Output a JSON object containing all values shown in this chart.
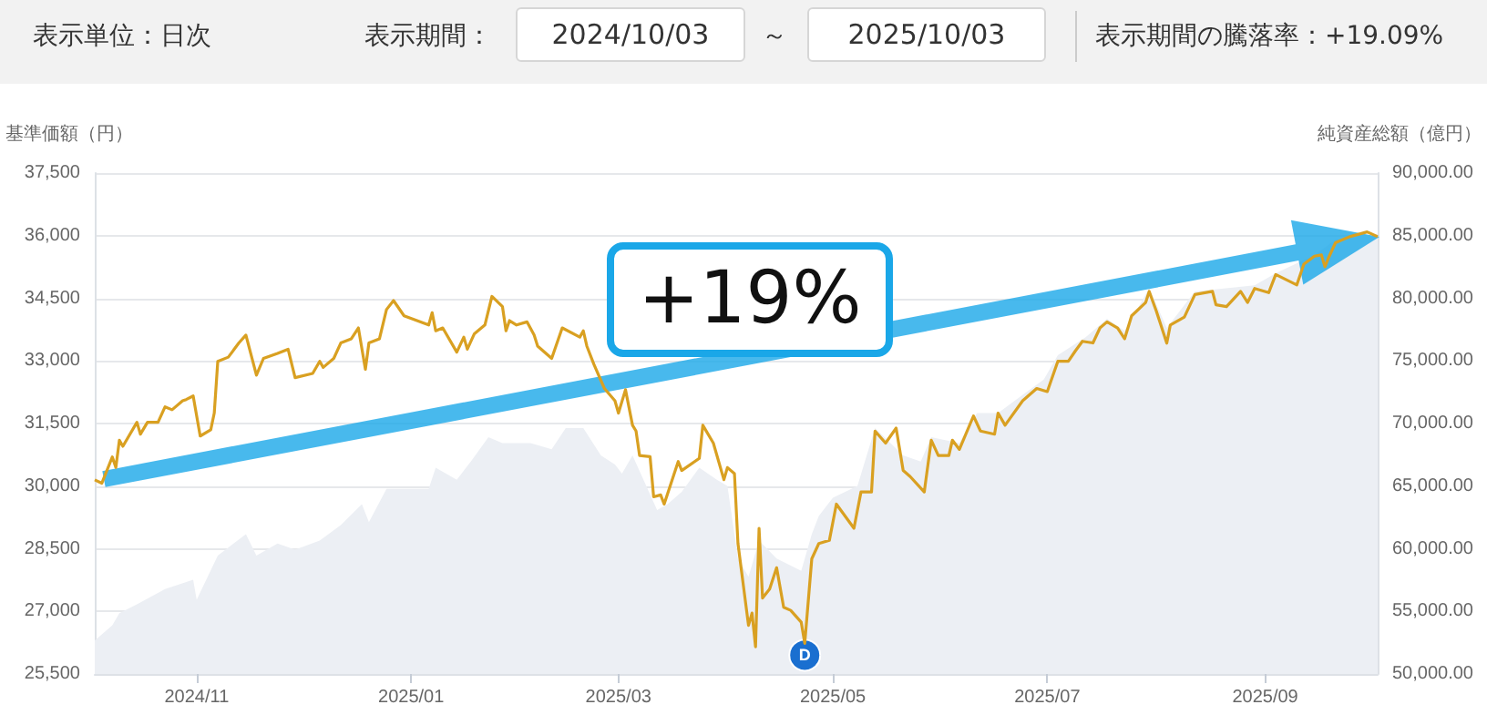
{
  "chart_data": {
    "type": "line",
    "ylabel": "基準価額（円）",
    "y2label": "純資産総額（億円）",
    "annotations": [
      "表示単位：日次",
      "表示期間：",
      "2024/10/03",
      "～",
      "2025/10/03",
      "表示期間の騰落率：+19.09%",
      "+19%",
      {
        "text": "D",
        "x": "2025-04-23",
        "y": 25950
      }
    ],
    "xlim": [
      "2024-10-03",
      "2025-10-03"
    ],
    "xticks": [
      {
        "value": "2024-11-01",
        "label": "2024/11"
      },
      {
        "value": "2025-01-01",
        "label": "2025/01"
      },
      {
        "value": "2025-03-01",
        "label": "2025/03"
      },
      {
        "value": "2025-05-01",
        "label": "2025/05"
      },
      {
        "value": "2025-07-01",
        "label": "2025/07"
      },
      {
        "value": "2025-09-01",
        "label": "2025/09"
      }
    ],
    "ylim": [
      25500,
      37500
    ],
    "yticks": [
      {
        "value": 25500,
        "label": "25,500"
      },
      {
        "value": 27000,
        "label": "27,000"
      },
      {
        "value": 28500,
        "label": "28,500"
      },
      {
        "value": 30000,
        "label": "30,000"
      },
      {
        "value": 31500,
        "label": "31,500"
      },
      {
        "value": 33000,
        "label": "33,000"
      },
      {
        "value": 34500,
        "label": "34,500"
      },
      {
        "value": 36000,
        "label": "36,000"
      },
      {
        "value": 37500,
        "label": "37,500"
      }
    ],
    "y2lim": [
      50000,
      90000
    ],
    "y2ticks": [
      {
        "value": 50000,
        "label": "50,000.00"
      },
      {
        "value": 55000,
        "label": "55,000.00"
      },
      {
        "value": 60000,
        "label": "60,000.00"
      },
      {
        "value": 65000,
        "label": "65,000.00"
      },
      {
        "value": 70000,
        "label": "70,000.00"
      },
      {
        "value": 75000,
        "label": "75,000.00"
      },
      {
        "value": 80000,
        "label": "80,000.00"
      },
      {
        "value": 85000,
        "label": "85,000.00"
      },
      {
        "value": 90000,
        "label": "90,000.00"
      }
    ],
    "grid": "y",
    "marker": "none",
    "series": [
      {
        "type": "area",
        "axis": "y2",
        "color": "#eceff4",
        "x": [
          "2024-10-03",
          "2024-10-08",
          "2024-10-10",
          "2024-10-15",
          "2024-10-23",
          "2024-10-31",
          "2024-11-01",
          "2024-11-07",
          "2024-11-15",
          "2024-11-18",
          "2024-11-24",
          "2024-11-29",
          "2024-12-06",
          "2024-12-12",
          "2024-12-18",
          "2024-12-20",
          "2024-12-25",
          "2025-01-06",
          "2025-01-08",
          "2025-01-14",
          "2025-01-18",
          "2025-01-23",
          "2025-01-27",
          "2025-01-31",
          "2025-02-04",
          "2025-02-10",
          "2025-02-14",
          "2025-02-19",
          "2025-02-24",
          "2025-02-28",
          "2025-03-02",
          "2025-03-05",
          "2025-03-12",
          "2025-03-15",
          "2025-03-19",
          "2025-03-24",
          "2025-03-29",
          "2025-04-01",
          "2025-04-04",
          "2025-04-07",
          "2025-04-10",
          "2025-04-15",
          "2025-04-22",
          "2025-04-25",
          "2025-04-27",
          "2025-05-01",
          "2025-05-08",
          "2025-05-13",
          "2025-05-21",
          "2025-05-26",
          "2025-05-29",
          "2025-06-06",
          "2025-06-11",
          "2025-06-17",
          "2025-06-24",
          "2025-06-30",
          "2025-07-04",
          "2025-07-12",
          "2025-07-18",
          "2025-07-23",
          "2025-07-30",
          "2025-08-04",
          "2025-08-12",
          "2025-08-29",
          "2025-09-04",
          "2025-09-15",
          "2025-09-21",
          "2025-10-03"
        ],
        "values": [
          52665,
          53890,
          54850,
          55570,
          56790,
          57520,
          55920,
          59455,
          61160,
          59455,
          60425,
          59935,
          60660,
          61885,
          63570,
          62120,
          64790,
          64790,
          66480,
          65515,
          66970,
          68910,
          68430,
          68430,
          68430,
          67940,
          69640,
          69640,
          67455,
          66725,
          66000,
          67455,
          63090,
          63570,
          64545,
          66480,
          65515,
          65025,
          59210,
          57760,
          60660,
          59210,
          58245,
          61160,
          62610,
          64065,
          65025,
          69640,
          67455,
          66970,
          68910,
          68430,
          70845,
          70845,
          72300,
          73510,
          75455,
          76910,
          78365,
          77395,
          80790,
          77640,
          80545,
          81030,
          82000,
          83455,
          84665,
          85150
        ]
      },
      {
        "color": "#d9a021",
        "x": [
          "2024-10-03",
          "2024-10-05",
          "2024-10-08",
          "2024-10-09",
          "2024-10-10",
          "2024-10-11",
          "2024-10-15",
          "2024-10-16",
          "2024-10-18",
          "2024-10-21",
          "2024-10-23",
          "2024-10-25",
          "2024-10-28",
          "2024-10-29",
          "2024-10-31",
          "2024-11-02",
          "2024-11-05",
          "2024-11-06",
          "2024-11-07",
          "2024-11-10",
          "2024-11-13",
          "2024-11-15",
          "2024-11-18",
          "2024-11-20",
          "2024-11-24",
          "2024-11-27",
          "2024-11-29",
          "2024-12-04",
          "2024-12-06",
          "2024-12-07",
          "2024-12-10",
          "2024-12-12",
          "2024-12-15",
          "2024-12-17",
          "2024-12-19",
          "2024-12-20",
          "2024-12-23",
          "2024-12-25",
          "2024-12-27",
          "2024-12-30",
          "2025-01-06",
          "2025-01-07",
          "2025-01-08",
          "2025-01-10",
          "2025-01-14",
          "2025-01-16",
          "2025-01-17",
          "2025-01-19",
          "2025-01-22",
          "2025-01-24",
          "2025-01-27",
          "2025-01-28",
          "2025-01-29",
          "2025-01-31",
          "2025-02-03",
          "2025-02-05",
          "2025-02-06",
          "2025-02-10",
          "2025-02-13",
          "2025-02-18",
          "2025-02-19",
          "2025-02-20",
          "2025-02-22",
          "2025-02-25",
          "2025-02-28",
          "2025-03-01",
          "2025-03-03",
          "2025-03-05",
          "2025-03-06",
          "2025-03-07",
          "2025-03-10",
          "2025-03-11",
          "2025-03-13",
          "2025-03-14",
          "2025-03-18",
          "2025-03-19",
          "2025-03-24",
          "2025-03-25",
          "2025-03-28",
          "2025-03-31",
          "2025-04-01",
          "2025-04-03",
          "2025-04-04",
          "2025-04-07",
          "2025-04-08",
          "2025-04-09",
          "2025-04-10",
          "2025-04-11",
          "2025-04-13",
          "2025-04-15",
          "2025-04-17",
          "2025-04-19",
          "2025-04-22",
          "2025-04-23",
          "2025-04-25",
          "2025-04-27",
          "2025-04-30",
          "2025-05-02",
          "2025-05-07",
          "2025-05-09",
          "2025-05-12",
          "2025-05-13",
          "2025-05-16",
          "2025-05-19",
          "2025-05-21",
          "2025-05-23",
          "2025-05-27",
          "2025-05-29",
          "2025-05-31",
          "2025-06-03",
          "2025-06-04",
          "2025-06-06",
          "2025-06-10",
          "2025-06-12",
          "2025-06-16",
          "2025-06-17",
          "2025-06-19",
          "2025-06-24",
          "2025-06-28",
          "2025-07-01",
          "2025-07-04",
          "2025-07-07",
          "2025-07-09",
          "2025-07-11",
          "2025-07-14",
          "2025-07-16",
          "2025-07-18",
          "2025-07-21",
          "2025-07-23",
          "2025-07-25",
          "2025-07-29",
          "2025-07-30",
          "2025-08-01",
          "2025-08-04",
          "2025-08-05",
          "2025-08-09",
          "2025-08-12",
          "2025-08-17",
          "2025-08-18",
          "2025-08-21",
          "2025-08-25",
          "2025-08-27",
          "2025-08-29",
          "2025-09-02",
          "2025-09-04",
          "2025-09-10",
          "2025-09-12",
          "2025-09-15",
          "2025-09-17",
          "2025-09-18",
          "2025-09-19",
          "2025-09-21",
          "2025-09-25",
          "2025-09-30",
          "2025-10-03"
        ],
        "values": [
          30150,
          30070,
          30700,
          30445,
          31100,
          30955,
          31530,
          31245,
          31530,
          31530,
          31900,
          31830,
          32045,
          32075,
          32160,
          31200,
          31350,
          31750,
          32990,
          33090,
          33430,
          33620,
          32660,
          33060,
          33180,
          33280,
          32600,
          32700,
          32990,
          32845,
          33060,
          33430,
          33530,
          33790,
          32800,
          33430,
          33530,
          34230,
          34445,
          34080,
          33860,
          34155,
          33720,
          33790,
          33210,
          33570,
          33280,
          33650,
          33860,
          34545,
          34300,
          33720,
          33965,
          33860,
          33935,
          33620,
          33355,
          33060,
          33790,
          33570,
          33720,
          33355,
          32920,
          32340,
          32045,
          31750,
          32310,
          31460,
          31320,
          30735,
          30705,
          29745,
          29790,
          29570,
          30590,
          30375,
          30665,
          31460,
          31030,
          30155,
          30445,
          30300,
          28625,
          26665,
          26960,
          26150,
          28990,
          27320,
          27535,
          28045,
          27100,
          27025,
          26740,
          26235,
          28260,
          28625,
          28700,
          29570,
          28990,
          29860,
          29860,
          31320,
          31030,
          31390,
          30375,
          30230,
          29860,
          31100,
          30735,
          30735,
          31100,
          30880,
          31680,
          31320,
          31245,
          31750,
          31460,
          32045,
          32340,
          32265,
          32990,
          32990,
          33240,
          33470,
          33430,
          33790,
          33935,
          33790,
          33530,
          34080,
          34400,
          34665,
          34200,
          33425,
          33860,
          34050,
          34590,
          34665,
          34345,
          34300,
          34665,
          34400,
          34735,
          34635,
          35070,
          34820,
          35320,
          35510,
          35540,
          35255,
          35465,
          35830,
          35975,
          36090,
          35975
        ]
      }
    ]
  }
}
